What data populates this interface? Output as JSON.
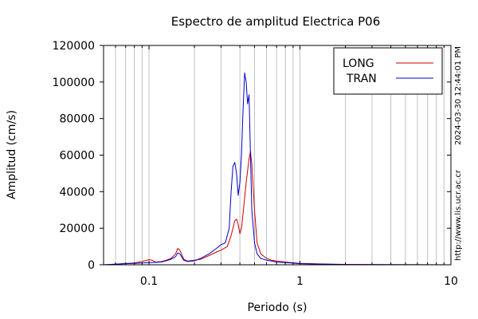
{
  "chart_data": {
    "type": "line",
    "title": "Espectro de amplitud Electrica P06",
    "xlabel": "Periodo (s)",
    "ylabel": "Amplitud (cm/s)",
    "xscale": "log",
    "xlim": [
      0.05,
      10
    ],
    "ylim": [
      0,
      120000
    ],
    "xticks": [
      {
        "value": 0.1,
        "label": "0.1"
      },
      {
        "value": 1,
        "label": "1"
      },
      {
        "value": 10,
        "label": "10"
      }
    ],
    "yticks": [
      {
        "value": 0,
        "label": "0"
      },
      {
        "value": 20000,
        "label": "20000"
      },
      {
        "value": 40000,
        "label": "40000"
      },
      {
        "value": 60000,
        "label": "60000"
      },
      {
        "value": 80000,
        "label": "80000"
      },
      {
        "value": 100000,
        "label": "100000"
      },
      {
        "value": 120000,
        "label": "120000"
      }
    ],
    "grid": true,
    "legend_position": "top-right",
    "series": [
      {
        "name": "LONG",
        "color": "#cc0000",
        "x": [
          0.05,
          0.06,
          0.07,
          0.08,
          0.09,
          0.1,
          0.105,
          0.11,
          0.12,
          0.13,
          0.14,
          0.15,
          0.155,
          0.16,
          0.17,
          0.18,
          0.2,
          0.22,
          0.25,
          0.28,
          0.3,
          0.33,
          0.35,
          0.37,
          0.38,
          0.39,
          0.4,
          0.41,
          0.42,
          0.44,
          0.46,
          0.47,
          0.48,
          0.5,
          0.52,
          0.55,
          0.6,
          0.65,
          0.7,
          0.8,
          1,
          1.5,
          2,
          3,
          5,
          10
        ],
        "y": [
          0,
          300,
          700,
          1000,
          1800,
          2800,
          2500,
          1500,
          1700,
          2500,
          3500,
          6000,
          9000,
          8000,
          3000,
          2000,
          2500,
          3000,
          5000,
          7000,
          8000,
          10000,
          16000,
          24000,
          25000,
          22000,
          17000,
          20000,
          28000,
          45000,
          58000,
          62000,
          55000,
          30000,
          12000,
          6000,
          3500,
          2500,
          2000,
          1500,
          800,
          400,
          200,
          100,
          50,
          0
        ]
      },
      {
        "name": "TRAN",
        "color": "#0000cc",
        "x": [
          0.05,
          0.06,
          0.07,
          0.08,
          0.09,
          0.1,
          0.11,
          0.12,
          0.13,
          0.14,
          0.15,
          0.155,
          0.16,
          0.17,
          0.18,
          0.2,
          0.22,
          0.25,
          0.28,
          0.3,
          0.32,
          0.34,
          0.35,
          0.36,
          0.37,
          0.38,
          0.39,
          0.4,
          0.41,
          0.42,
          0.43,
          0.44,
          0.45,
          0.46,
          0.47,
          0.48,
          0.5,
          0.52,
          0.55,
          0.6,
          0.65,
          0.7,
          0.8,
          1,
          1.5,
          2,
          3,
          5,
          10
        ],
        "y": [
          0,
          300,
          600,
          800,
          1000,
          1200,
          1300,
          1500,
          2200,
          3000,
          4500,
          6500,
          6000,
          2500,
          1800,
          2200,
          3500,
          6000,
          9000,
          11000,
          12000,
          20000,
          40000,
          54000,
          56000,
          50000,
          38000,
          45000,
          60000,
          85000,
          105000,
          100000,
          88000,
          93000,
          60000,
          30000,
          12000,
          6000,
          3500,
          2500,
          2000,
          1500,
          1200,
          600,
          300,
          150,
          80,
          40,
          0
        ]
      }
    ]
  },
  "side_texts": {
    "timestamp": "2024-03-30 12:44:01 PM",
    "url": "http://www.lis.ucr.ac.cr"
  }
}
